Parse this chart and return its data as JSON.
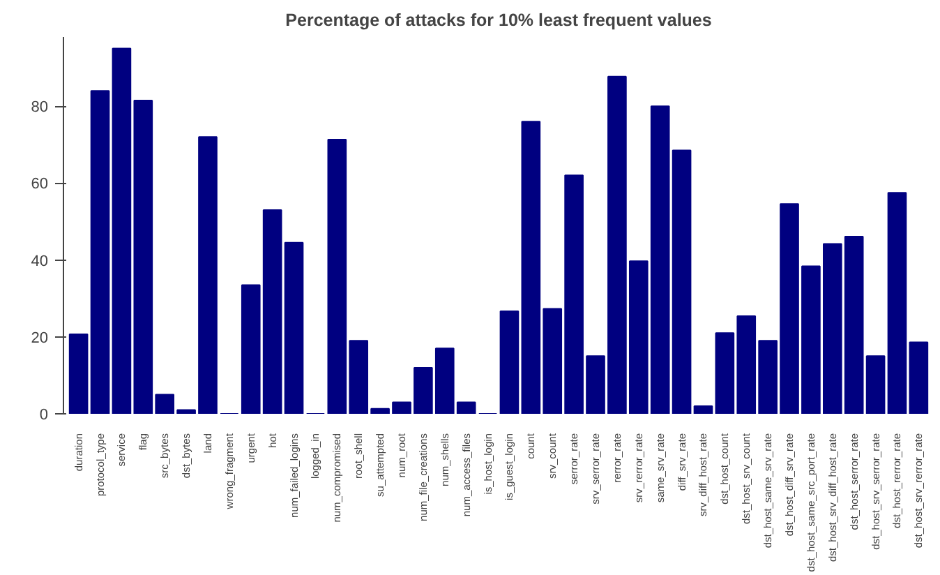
{
  "chart_data": {
    "type": "bar",
    "title": "Percentage of attacks for 10% least frequent values",
    "categories": [
      "duration",
      "protocol_type",
      "service",
      "flag",
      "src_bytes",
      "dst_bytes",
      "land",
      "wrong_fragment",
      "urgent",
      "hot",
      "num_failed_logins",
      "logged_in",
      "num_compromised",
      "root_shell",
      "su_attempted",
      "num_root",
      "num_file_creations",
      "num_shells",
      "num_access_files",
      "is_host_login",
      "is_guest_login",
      "count",
      "srv_count",
      "serror_rate",
      "srv_serror_rate",
      "rerror_rate",
      "srv_rerror_rate",
      "same_srv_rate",
      "diff_srv_rate",
      "srv_diff_host_rate",
      "dst_host_count",
      "dst_host_srv_count",
      "dst_host_same_srv_rate",
      "dst_host_diff_srv_rate",
      "dst_host_same_src_port_rate",
      "dst_host_srv_diff_host_rate",
      "dst_host_serror_rate",
      "dst_host_srv_serror_rate",
      "dst_host_rerror_rate",
      "dst_host_srv_rerror_rate"
    ],
    "values": [
      20.7,
      84,
      95,
      81.5,
      5,
      1,
      72,
      0,
      33.5,
      53,
      44.5,
      0,
      71.3,
      19,
      1.3,
      3,
      12,
      17,
      3,
      0,
      26.7,
      76,
      27.3,
      62,
      15,
      87.7,
      39.7,
      80,
      68.5,
      2,
      21,
      25.4,
      19,
      54.6,
      38.4,
      44.2,
      46.1,
      15,
      57.5,
      18.6
    ],
    "color": "#000080",
    "ylim": [
      0,
      98
    ],
    "yticks": [
      0,
      20,
      40,
      60,
      80
    ],
    "grid": false
  }
}
